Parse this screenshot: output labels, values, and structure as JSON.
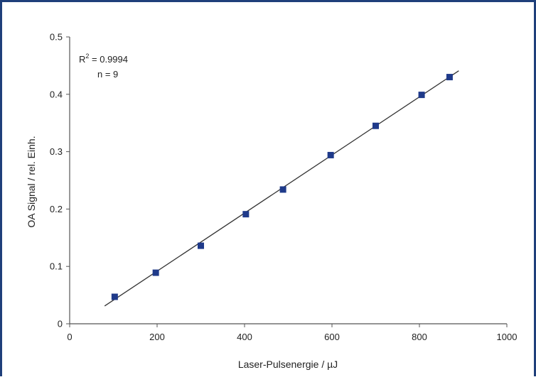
{
  "chart_data": {
    "type": "scatter",
    "title": "",
    "xlabel": "Laser-Pulsenergie / µJ",
    "ylabel": "OA Signal / rel. Einh.",
    "xlim": [
      0,
      1000
    ],
    "ylim": [
      0,
      0.5
    ],
    "xticks": [
      "0",
      "200",
      "400",
      "600",
      "800",
      "1000"
    ],
    "yticks": [
      "0",
      "0.1",
      "0.2",
      "0.3",
      "0.4",
      "0.5"
    ],
    "grid": false,
    "legend": "none",
    "marker_color": "#1f3a8a",
    "line_color": "#333333",
    "series": [
      {
        "x": [
          103,
          197,
          300,
          403,
          488,
          597,
          700,
          805,
          869
        ],
        "y": [
          0.047,
          0.089,
          0.136,
          0.191,
          0.234,
          0.294,
          0.345,
          0.399,
          0.43
        ]
      }
    ],
    "fit_line": {
      "x": [
        80,
        890
      ],
      "y": [
        0.031,
        0.441
      ]
    },
    "annotations": {
      "r2_prefix": "R",
      "r2_superscript": "2",
      "r2_value": " = 0.9994",
      "n_text": "n = 9"
    }
  }
}
